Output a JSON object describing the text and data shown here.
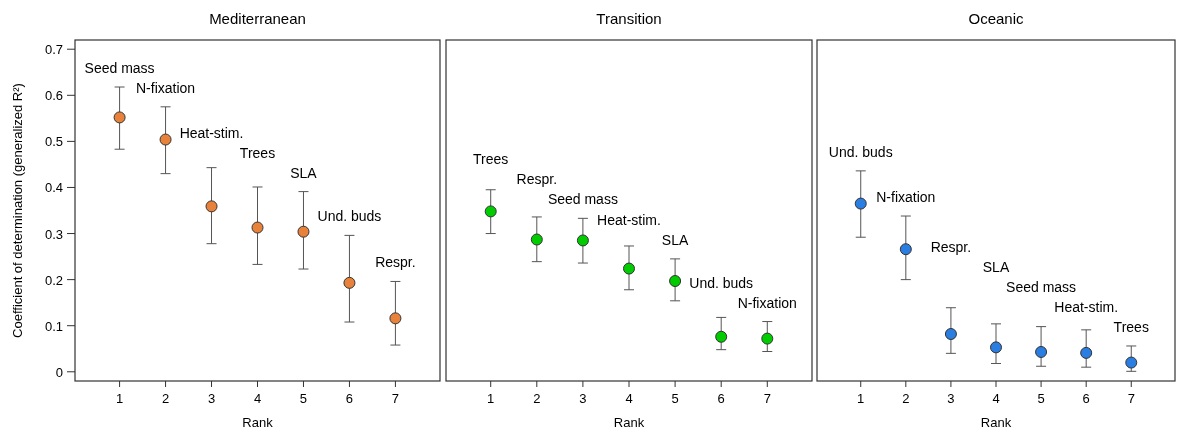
{
  "chart_data": [
    {
      "type": "scatter",
      "title": "Mediterranean",
      "xlabel": "Rank",
      "ylabel": "Coefficient of determination (generalized R²)",
      "categories": [
        "1",
        "2",
        "3",
        "4",
        "5",
        "6",
        "7"
      ],
      "color": "#e8823a",
      "marker": "circle",
      "values": [
        0.552,
        0.504,
        0.359,
        0.313,
        0.304,
        0.193,
        0.116
      ],
      "errors": [
        [
          0.483,
          0.618
        ],
        [
          0.43,
          0.575
        ],
        [
          0.278,
          0.443
        ],
        [
          0.233,
          0.401
        ],
        [
          0.223,
          0.391
        ],
        [
          0.108,
          0.296
        ],
        [
          0.058,
          0.196
        ]
      ],
      "ylim": [
        -0.02,
        0.72
      ],
      "yticks": [
        0,
        0.1,
        0.2,
        0.3,
        0.4,
        0.5,
        0.6,
        0.7
      ],
      "annotations": [
        "Seed mass",
        "N-fixation",
        "Heat-stim.",
        "Trees",
        "SLA",
        "Und. buds",
        "Respr."
      ]
    },
    {
      "type": "scatter",
      "title": "Transition",
      "xlabel": "Rank",
      "categories": [
        "1",
        "2",
        "3",
        "4",
        "5",
        "6",
        "7"
      ],
      "color": "#00cc00",
      "marker": "circle",
      "values": [
        0.348,
        0.287,
        0.285,
        0.224,
        0.197,
        0.076,
        0.072
      ],
      "errors": [
        [
          0.3,
          0.395
        ],
        [
          0.239,
          0.336
        ],
        [
          0.236,
          0.333
        ],
        [
          0.178,
          0.273
        ],
        [
          0.154,
          0.245
        ],
        [
          0.048,
          0.118
        ],
        [
          0.044,
          0.109
        ]
      ],
      "ylim": [
        -0.02,
        0.72
      ],
      "tick_labels": "x",
      "annotations": [
        "Trees",
        "Respr.",
        "Seed mass",
        "Heat-stim.",
        "SLA",
        "Und. buds",
        "N-fixation"
      ]
    },
    {
      "type": "scatter",
      "title": "Oceanic",
      "xlabel": "Rank",
      "categories": [
        "1",
        "2",
        "3",
        "4",
        "5",
        "6",
        "7"
      ],
      "color": "#2a7de1",
      "marker": "circle",
      "values": [
        0.365,
        0.266,
        0.082,
        0.053,
        0.043,
        0.041,
        0.02
      ],
      "errors": [
        [
          0.292,
          0.436
        ],
        [
          0.2,
          0.338
        ],
        [
          0.04,
          0.139
        ],
        [
          0.018,
          0.104
        ],
        [
          0.012,
          0.098
        ],
        [
          0.01,
          0.091
        ],
        [
          0.001,
          0.056
        ]
      ],
      "ylim": [
        -0.02,
        0.72
      ],
      "tick_labels": "x",
      "annotations": [
        "Und. buds",
        "N-fixation",
        "Respr.",
        "SLA",
        "Seed mass",
        "Heat-stim.",
        "Trees"
      ]
    }
  ]
}
